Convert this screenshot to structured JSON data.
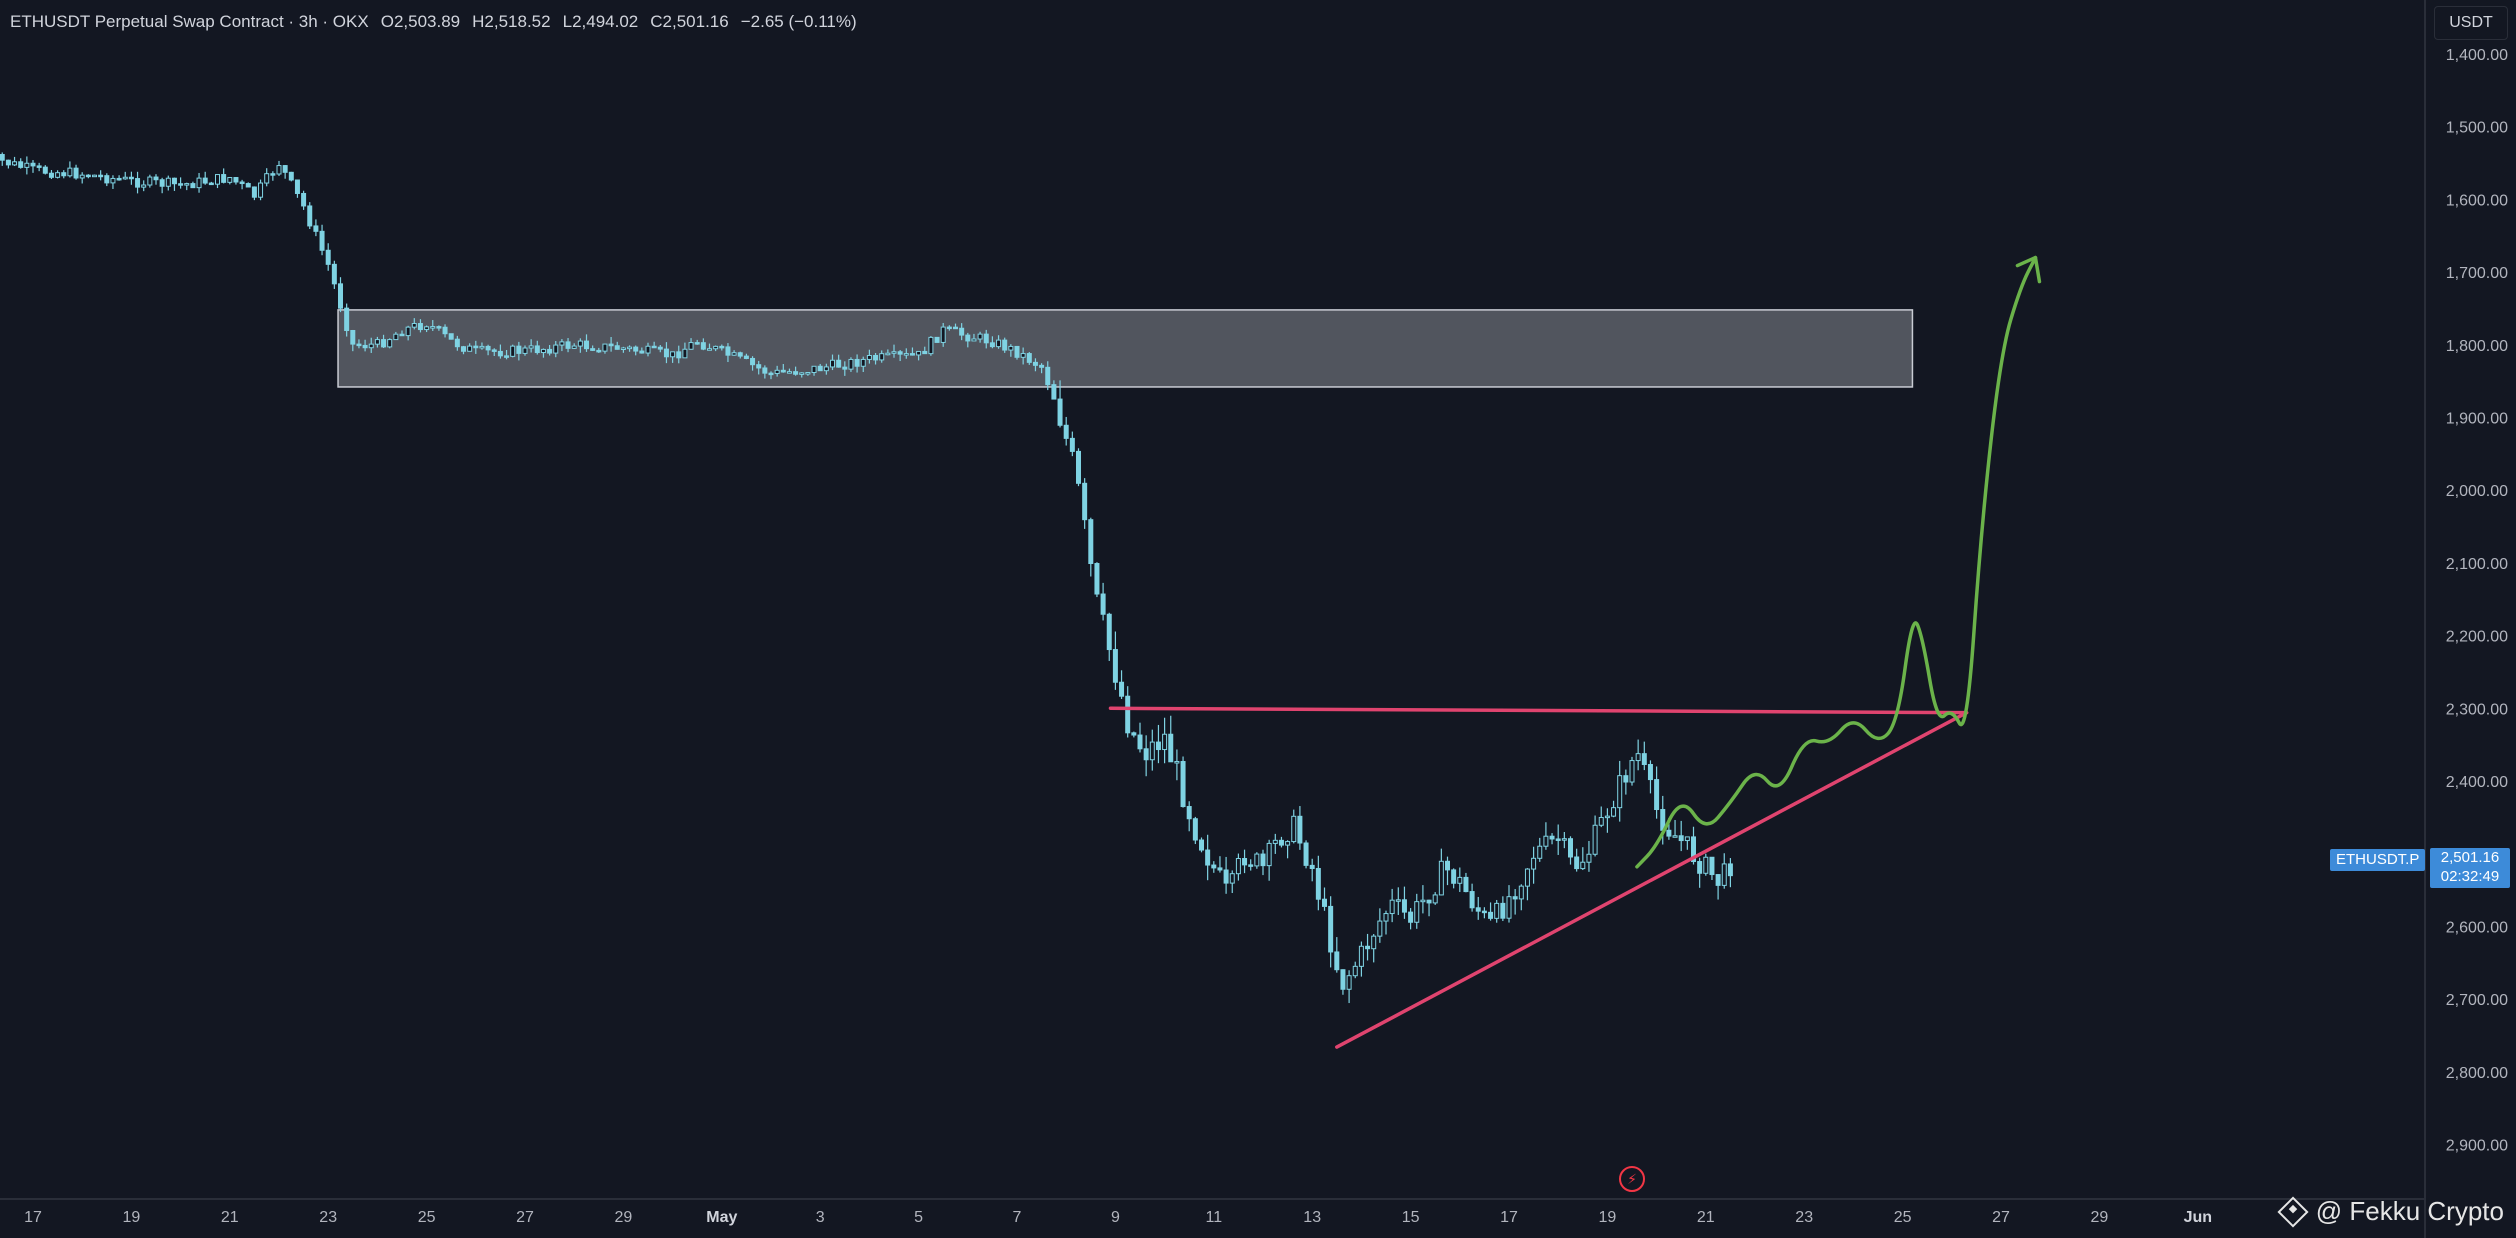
{
  "header": {
    "symbol": "ETHUSDT Perpetual Swap Contract · 3h · OKX",
    "open_label": "O",
    "open": "2,503.89",
    "high_label": "H",
    "high": "2,518.52",
    "low_label": "L",
    "low": "2,494.02",
    "close_label": "C",
    "close": "2,501.16",
    "change": "−2.65 (−0.11%)"
  },
  "currency_button": "USDT",
  "price_tag": {
    "symbol": "ETHUSDT.P",
    "price": "2,501.16",
    "countdown": "02:32:49"
  },
  "watermark": "@ Fekku Crypto",
  "colors": {
    "background": "#131722",
    "candle": "#7fd3e3",
    "support": "#e0446f",
    "projection": "#6bb34a",
    "zone": "#5d6068"
  },
  "chart_data": {
    "type": "candlestick",
    "y_axis": {
      "inverted": true,
      "min": 1400,
      "max": 2900,
      "ticks": [
        "1,400.00",
        "1,500.00",
        "1,600.00",
        "1,700.00",
        "1,800.00",
        "1,900.00",
        "2,000.00",
        "2,100.00",
        "2,200.00",
        "2,300.00",
        "2,400.00",
        "2,500.00",
        "2,600.00",
        "2,700.00",
        "2,800.00",
        "2,900.00"
      ]
    },
    "x_axis": {
      "ticks": [
        "17",
        "19",
        "21",
        "23",
        "25",
        "27",
        "29",
        "May",
        "3",
        "5",
        "7",
        "9",
        "11",
        "13",
        "15",
        "17",
        "19",
        "21",
        "23",
        "25",
        "27",
        "29",
        "Jun"
      ]
    },
    "zone": {
      "low": 1752,
      "high": 1858,
      "from_day": 23.2,
      "to_day": 55.2
    },
    "resistance_line": {
      "price_start": 2300,
      "price_end": 2306,
      "from_day": 38.9,
      "to_day": 56.3
    },
    "support_line": {
      "price_start": 2766,
      "price_end": 2306,
      "from_day": 43.5,
      "to_day": 56.3
    },
    "path": [
      [
        16.0,
        1540
      ],
      [
        17.0,
        1560
      ],
      [
        18.0,
        1565
      ],
      [
        19.0,
        1575
      ],
      [
        20.0,
        1580
      ],
      [
        21.0,
        1570
      ],
      [
        21.5,
        1595
      ],
      [
        22.0,
        1550
      ],
      [
        22.5,
        1610
      ],
      [
        23.0,
        1690
      ],
      [
        23.5,
        1800
      ],
      [
        24.0,
        1800
      ],
      [
        24.5,
        1780
      ],
      [
        25.0,
        1770
      ],
      [
        25.5,
        1795
      ],
      [
        26.0,
        1810
      ],
      [
        27.0,
        1808
      ],
      [
        28.0,
        1800
      ],
      [
        29.0,
        1805
      ],
      [
        30.0,
        1815
      ],
      [
        30.5,
        1795
      ],
      [
        31.0,
        1810
      ],
      [
        32.0,
        1840
      ],
      [
        33.0,
        1832
      ],
      [
        34.0,
        1820
      ],
      [
        35.0,
        1815
      ],
      [
        35.5,
        1780
      ],
      [
        36.5,
        1795
      ],
      [
        37.0,
        1810
      ],
      [
        37.5,
        1830
      ],
      [
        37.8,
        1880
      ],
      [
        38.2,
        1980
      ],
      [
        38.6,
        2150
      ],
      [
        39.0,
        2250
      ],
      [
        39.3,
        2330
      ],
      [
        39.6,
        2360
      ],
      [
        40.0,
        2340
      ],
      [
        40.3,
        2400
      ],
      [
        40.6,
        2460
      ],
      [
        41.0,
        2520
      ],
      [
        41.3,
        2560
      ],
      [
        41.6,
        2500
      ],
      [
        42.0,
        2520
      ],
      [
        42.3,
        2480
      ],
      [
        42.6,
        2460
      ],
      [
        43.0,
        2520
      ],
      [
        43.3,
        2600
      ],
      [
        43.6,
        2680
      ],
      [
        44.0,
        2640
      ],
      [
        44.3,
        2600
      ],
      [
        44.6,
        2570
      ],
      [
        45.0,
        2590
      ],
      [
        45.3,
        2560
      ],
      [
        45.7,
        2520
      ],
      [
        46.0,
        2540
      ],
      [
        46.3,
        2570
      ],
      [
        46.6,
        2600
      ],
      [
        47.0,
        2560
      ],
      [
        47.5,
        2500
      ],
      [
        48.0,
        2480
      ],
      [
        48.3,
        2520
      ],
      [
        48.6,
        2500
      ],
      [
        49.0,
        2440
      ],
      [
        49.3,
        2400
      ],
      [
        49.6,
        2360
      ],
      [
        50.0,
        2440
      ],
      [
        50.3,
        2470
      ],
      [
        50.6,
        2490
      ],
      [
        51.0,
        2520
      ],
      [
        51.3,
        2540
      ],
      [
        51.6,
        2500
      ]
    ],
    "projection": [
      [
        49.6,
        2518
      ],
      [
        50.0,
        2490
      ],
      [
        50.5,
        2420
      ],
      [
        51.0,
        2470
      ],
      [
        51.5,
        2430
      ],
      [
        52.0,
        2380
      ],
      [
        52.5,
        2420
      ],
      [
        53.0,
        2340
      ],
      [
        53.5,
        2350
      ],
      [
        54.0,
        2310
      ],
      [
        54.5,
        2350
      ],
      [
        54.9,
        2320
      ],
      [
        55.2,
        2170
      ],
      [
        55.4,
        2200
      ],
      [
        55.7,
        2320
      ],
      [
        56.0,
        2300
      ],
      [
        56.3,
        2340
      ],
      [
        56.6,
        2050
      ],
      [
        57.0,
        1810
      ],
      [
        57.4,
        1720
      ],
      [
        57.7,
        1680
      ]
    ]
  }
}
